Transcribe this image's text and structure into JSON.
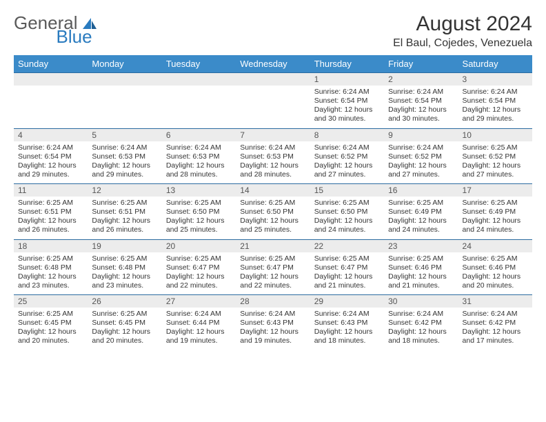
{
  "logo": {
    "text1": "General",
    "text2": "Blue"
  },
  "header": {
    "month_title": "August 2024",
    "location": "El Baul, Cojedes, Venezuela"
  },
  "colors": {
    "header_bg": "#3b8bc9",
    "header_text": "#ffffff",
    "row_divider": "#2a6aa0",
    "daynum_bg": "#ececec",
    "logo_gray": "#5a5a5a",
    "logo_blue": "#2a7bbf"
  },
  "day_names": [
    "Sunday",
    "Monday",
    "Tuesday",
    "Wednesday",
    "Thursday",
    "Friday",
    "Saturday"
  ],
  "weeks": [
    [
      {
        "n": "",
        "lines": []
      },
      {
        "n": "",
        "lines": []
      },
      {
        "n": "",
        "lines": []
      },
      {
        "n": "",
        "lines": []
      },
      {
        "n": "1",
        "lines": [
          "Sunrise: 6:24 AM",
          "Sunset: 6:54 PM",
          "Daylight: 12 hours and 30 minutes."
        ]
      },
      {
        "n": "2",
        "lines": [
          "Sunrise: 6:24 AM",
          "Sunset: 6:54 PM",
          "Daylight: 12 hours and 30 minutes."
        ]
      },
      {
        "n": "3",
        "lines": [
          "Sunrise: 6:24 AM",
          "Sunset: 6:54 PM",
          "Daylight: 12 hours and 29 minutes."
        ]
      }
    ],
    [
      {
        "n": "4",
        "lines": [
          "Sunrise: 6:24 AM",
          "Sunset: 6:54 PM",
          "Daylight: 12 hours and 29 minutes."
        ]
      },
      {
        "n": "5",
        "lines": [
          "Sunrise: 6:24 AM",
          "Sunset: 6:53 PM",
          "Daylight: 12 hours and 29 minutes."
        ]
      },
      {
        "n": "6",
        "lines": [
          "Sunrise: 6:24 AM",
          "Sunset: 6:53 PM",
          "Daylight: 12 hours and 28 minutes."
        ]
      },
      {
        "n": "7",
        "lines": [
          "Sunrise: 6:24 AM",
          "Sunset: 6:53 PM",
          "Daylight: 12 hours and 28 minutes."
        ]
      },
      {
        "n": "8",
        "lines": [
          "Sunrise: 6:24 AM",
          "Sunset: 6:52 PM",
          "Daylight: 12 hours and 27 minutes."
        ]
      },
      {
        "n": "9",
        "lines": [
          "Sunrise: 6:24 AM",
          "Sunset: 6:52 PM",
          "Daylight: 12 hours and 27 minutes."
        ]
      },
      {
        "n": "10",
        "lines": [
          "Sunrise: 6:25 AM",
          "Sunset: 6:52 PM",
          "Daylight: 12 hours and 27 minutes."
        ]
      }
    ],
    [
      {
        "n": "11",
        "lines": [
          "Sunrise: 6:25 AM",
          "Sunset: 6:51 PM",
          "Daylight: 12 hours and 26 minutes."
        ]
      },
      {
        "n": "12",
        "lines": [
          "Sunrise: 6:25 AM",
          "Sunset: 6:51 PM",
          "Daylight: 12 hours and 26 minutes."
        ]
      },
      {
        "n": "13",
        "lines": [
          "Sunrise: 6:25 AM",
          "Sunset: 6:50 PM",
          "Daylight: 12 hours and 25 minutes."
        ]
      },
      {
        "n": "14",
        "lines": [
          "Sunrise: 6:25 AM",
          "Sunset: 6:50 PM",
          "Daylight: 12 hours and 25 minutes."
        ]
      },
      {
        "n": "15",
        "lines": [
          "Sunrise: 6:25 AM",
          "Sunset: 6:50 PM",
          "Daylight: 12 hours and 24 minutes."
        ]
      },
      {
        "n": "16",
        "lines": [
          "Sunrise: 6:25 AM",
          "Sunset: 6:49 PM",
          "Daylight: 12 hours and 24 minutes."
        ]
      },
      {
        "n": "17",
        "lines": [
          "Sunrise: 6:25 AM",
          "Sunset: 6:49 PM",
          "Daylight: 12 hours and 24 minutes."
        ]
      }
    ],
    [
      {
        "n": "18",
        "lines": [
          "Sunrise: 6:25 AM",
          "Sunset: 6:48 PM",
          "Daylight: 12 hours and 23 minutes."
        ]
      },
      {
        "n": "19",
        "lines": [
          "Sunrise: 6:25 AM",
          "Sunset: 6:48 PM",
          "Daylight: 12 hours and 23 minutes."
        ]
      },
      {
        "n": "20",
        "lines": [
          "Sunrise: 6:25 AM",
          "Sunset: 6:47 PM",
          "Daylight: 12 hours and 22 minutes."
        ]
      },
      {
        "n": "21",
        "lines": [
          "Sunrise: 6:25 AM",
          "Sunset: 6:47 PM",
          "Daylight: 12 hours and 22 minutes."
        ]
      },
      {
        "n": "22",
        "lines": [
          "Sunrise: 6:25 AM",
          "Sunset: 6:47 PM",
          "Daylight: 12 hours and 21 minutes."
        ]
      },
      {
        "n": "23",
        "lines": [
          "Sunrise: 6:25 AM",
          "Sunset: 6:46 PM",
          "Daylight: 12 hours and 21 minutes."
        ]
      },
      {
        "n": "24",
        "lines": [
          "Sunrise: 6:25 AM",
          "Sunset: 6:46 PM",
          "Daylight: 12 hours and 20 minutes."
        ]
      }
    ],
    [
      {
        "n": "25",
        "lines": [
          "Sunrise: 6:25 AM",
          "Sunset: 6:45 PM",
          "Daylight: 12 hours and 20 minutes."
        ]
      },
      {
        "n": "26",
        "lines": [
          "Sunrise: 6:25 AM",
          "Sunset: 6:45 PM",
          "Daylight: 12 hours and 20 minutes."
        ]
      },
      {
        "n": "27",
        "lines": [
          "Sunrise: 6:24 AM",
          "Sunset: 6:44 PM",
          "Daylight: 12 hours and 19 minutes."
        ]
      },
      {
        "n": "28",
        "lines": [
          "Sunrise: 6:24 AM",
          "Sunset: 6:43 PM",
          "Daylight: 12 hours and 19 minutes."
        ]
      },
      {
        "n": "29",
        "lines": [
          "Sunrise: 6:24 AM",
          "Sunset: 6:43 PM",
          "Daylight: 12 hours and 18 minutes."
        ]
      },
      {
        "n": "30",
        "lines": [
          "Sunrise: 6:24 AM",
          "Sunset: 6:42 PM",
          "Daylight: 12 hours and 18 minutes."
        ]
      },
      {
        "n": "31",
        "lines": [
          "Sunrise: 6:24 AM",
          "Sunset: 6:42 PM",
          "Daylight: 12 hours and 17 minutes."
        ]
      }
    ]
  ]
}
